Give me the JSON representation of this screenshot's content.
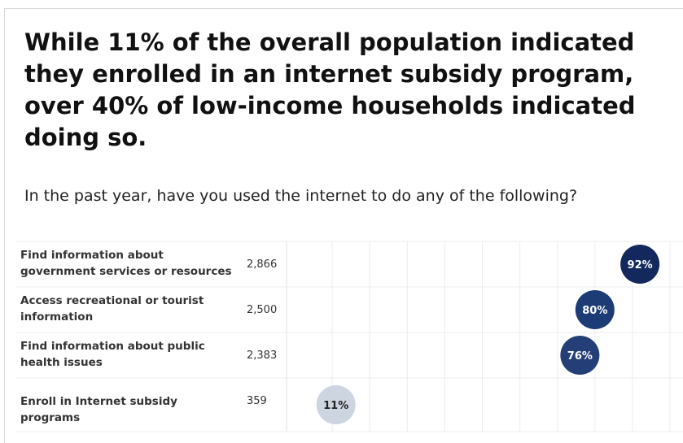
{
  "title": "While 11% of the overall population indicated they enrolled in an internet subsidy program, over 40% of low-income households indicated doing so.",
  "subtitle": "In the past year, have you used the internet to do any of the following?",
  "chart_data": {
    "type": "scatter",
    "title": "While 11% of the overall population indicated they enrolled in an internet subsidy program, over 40% of low-income households indicated doing so.",
    "subtitle": "In the past year, have you used the internet to do any of the following?",
    "categories": [
      "Find information about government services or resources",
      "Access recreational or tourist information",
      "Find information about public health issues",
      "Enroll in Internet subsidy programs"
    ],
    "counts": [
      "2,866",
      "2,500",
      "2,383",
      "359"
    ],
    "values": [
      92,
      80,
      76,
      11
    ],
    "value_labels": [
      "92%",
      "80%",
      "76%",
      "11%"
    ],
    "xlim": [
      0,
      100
    ],
    "grid": true,
    "colors": {
      "92": "#13285c",
      "80": "#1d3b74",
      "76": "#243f78",
      "11": "#cdd5e0",
      "label_dark_bg": "#ffffff",
      "label_light_bg": "#222222",
      "grid": "#ececec"
    }
  }
}
